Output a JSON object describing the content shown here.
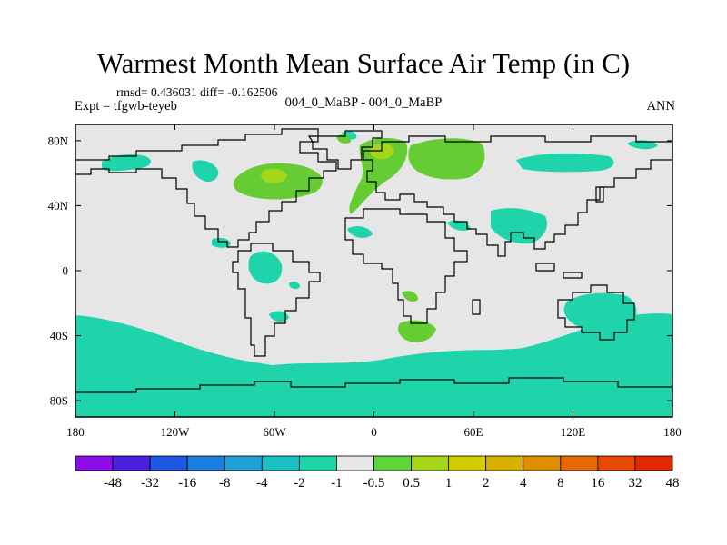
{
  "title": "Warmest Month Mean Surface Air Temp (in C)",
  "stats": "rmsd= 0.436031 diff= -0.162506",
  "experiment": "Expt = tfgwb-teyeb",
  "comparison": "004_0_MaBP - 004_0_MaBP",
  "season": "ANN",
  "map": {
    "projection": "cylindrical-equidistant",
    "lon_range": [
      -180,
      180
    ],
    "lat_range": [
      -90,
      90
    ],
    "background_color": "#e6e6e6",
    "coastline_color": "#000000",
    "lat_ticks": [
      {
        "label": "80N",
        "lat": 80
      },
      {
        "label": "40N",
        "lat": 40
      },
      {
        "label": "0",
        "lat": 0
      },
      {
        "label": "40S",
        "lat": -40
      },
      {
        "label": "80S",
        "lat": -80
      }
    ],
    "lon_ticks": [
      {
        "label": "180",
        "lon": -180
      },
      {
        "label": "120W",
        "lon": -120
      },
      {
        "label": "60W",
        "lon": -60
      },
      {
        "label": "0",
        "lon": 0
      },
      {
        "label": "60E",
        "lon": 60
      },
      {
        "label": "120E",
        "lon": 120
      },
      {
        "label": "180",
        "lon": 180
      }
    ]
  },
  "colorbar": {
    "boxes": [
      "#8a0ce8",
      "#4a1fe0",
      "#1f58e0",
      "#1a7fe0",
      "#1ea0d8",
      "#1cbfc6",
      "#1fd4aa",
      "#e6e6e6",
      "#5ed63a",
      "#a6d61a",
      "#d0cc00",
      "#d8b000",
      "#e08e00",
      "#e86800",
      "#e64a00",
      "#e22800"
    ],
    "labels": [
      "-48",
      "-32",
      "-16",
      "-8",
      "-4",
      "-2",
      "-1",
      "-0.5",
      "0.5",
      "1",
      "2",
      "4",
      "8",
      "16",
      "32",
      "48"
    ]
  }
}
